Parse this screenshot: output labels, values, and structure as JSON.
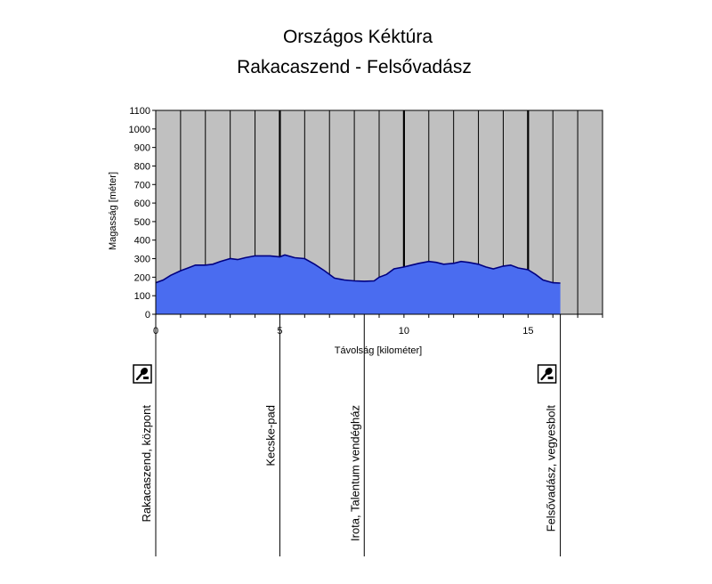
{
  "chart_data": {
    "type": "area",
    "title": "Országos Kéktúra",
    "subtitle": "Rakacaszend - Felsővadász",
    "xlabel": "Távolság [kilométer]",
    "ylabel": "Magasság [méter]",
    "xlim": [
      0,
      18
    ],
    "ylim": [
      0,
      1100
    ],
    "x_ticks": [
      0,
      5,
      10,
      15
    ],
    "y_ticks": [
      0,
      100,
      200,
      300,
      400,
      500,
      600,
      700,
      800,
      900,
      1000,
      1100
    ],
    "grid": true,
    "series": [
      {
        "name": "Magasság",
        "color": "#4a6cf0",
        "x": [
          0,
          0.3,
          0.6,
          1.0,
          1.3,
          1.6,
          2.0,
          2.3,
          2.6,
          3.0,
          3.3,
          3.6,
          4.0,
          4.3,
          4.6,
          5.0,
          5.2,
          5.6,
          6.0,
          6.4,
          6.8,
          7.2,
          7.6,
          8.0,
          8.4,
          8.8,
          9.0,
          9.3,
          9.6,
          10.0,
          10.3,
          10.6,
          11.0,
          11.3,
          11.6,
          12.0,
          12.3,
          12.6,
          13.0,
          13.3,
          13.6,
          14.0,
          14.3,
          14.6,
          15.0,
          15.3,
          15.6,
          16.0,
          16.3
        ],
        "y": [
          170,
          185,
          210,
          235,
          250,
          265,
          265,
          270,
          285,
          300,
          295,
          305,
          315,
          315,
          315,
          310,
          320,
          305,
          300,
          270,
          235,
          195,
          185,
          180,
          178,
          180,
          200,
          215,
          245,
          255,
          265,
          275,
          285,
          280,
          270,
          275,
          285,
          280,
          270,
          255,
          245,
          260,
          265,
          250,
          240,
          215,
          185,
          170,
          168
        ]
      }
    ],
    "waypoints": [
      {
        "km": 0,
        "name": "Rakacaszend, központ",
        "icon": "stamp-icon"
      },
      {
        "km": 5,
        "name": "Kecske-pad"
      },
      {
        "km": 8.4,
        "name": "Irota, Talentum vendégház"
      },
      {
        "km": 16.3,
        "name": "Felsővadász, vegyesbolt",
        "icon": "stamp-icon"
      }
    ]
  },
  "colors": {
    "plot_background": "#c0c0c0",
    "area_fill": "#4a6cf0",
    "area_line": "#000080",
    "grid": "#000000"
  }
}
